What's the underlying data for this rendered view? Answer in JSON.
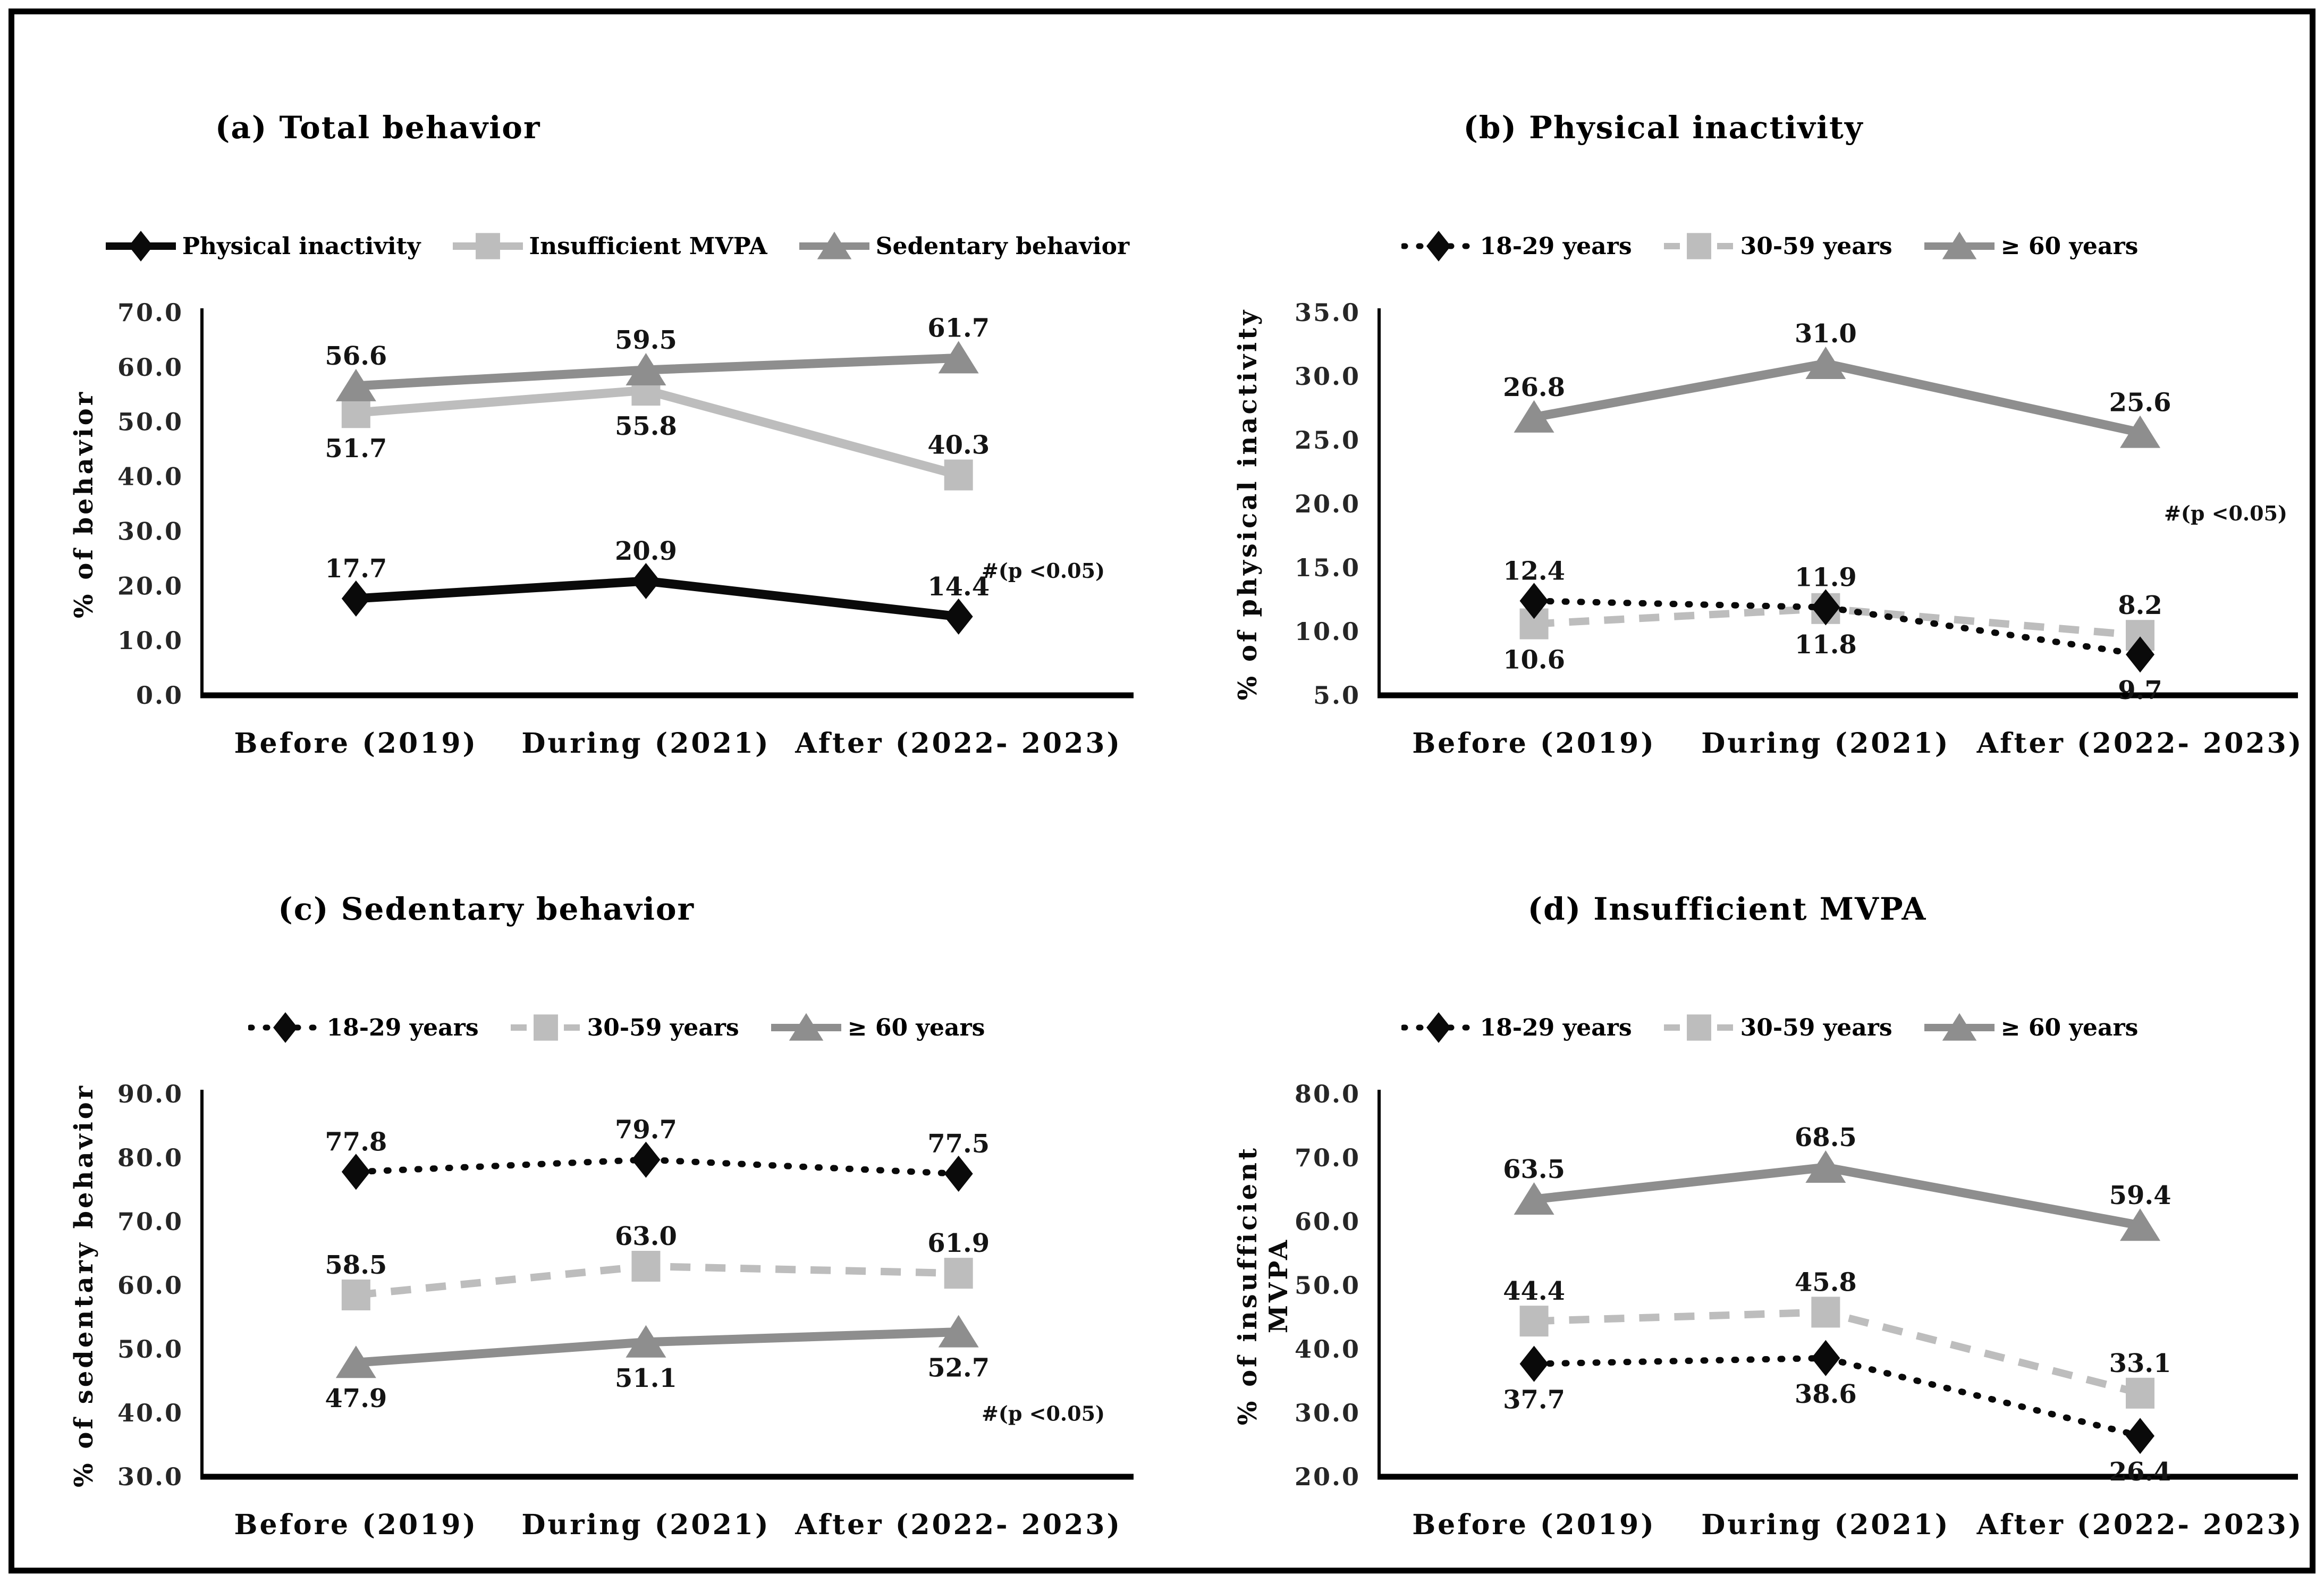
{
  "figure": {
    "background": "#ffffff",
    "border_color": "#000000",
    "text_color": "#000000",
    "colors": {
      "black_series": "#0a0a0a",
      "light_gray_series": "#bdbdbd",
      "mid_gray_series": "#8e8e8e"
    }
  },
  "categories": [
    "Before (2019)",
    "During (2021)",
    "After (2022- 2023)"
  ],
  "chart_data": [
    {
      "panel": "a",
      "type": "line",
      "title": "(a) Total behavior",
      "y_axis_label_lines": [
        "% of behavior"
      ],
      "ylim": [
        0,
        70
      ],
      "ystep": 10,
      "grid": false,
      "legend_position": "top",
      "annotation": {
        "text": "#(p <0.05)",
        "y": 21.5
      },
      "draw_order": [
        1,
        2,
        0
      ],
      "series": [
        {
          "name": "Physical inactivity",
          "marker": "diamond",
          "line_style": "solid",
          "color": "#0a0a0a",
          "values": [
            17.7,
            20.9,
            14.4
          ],
          "label_pos": [
            "above",
            "above",
            "above"
          ]
        },
        {
          "name": "Insufficient MVPA",
          "marker": "square",
          "line_style": "solid",
          "color": "#bdbdbd",
          "values": [
            51.7,
            55.8,
            40.3
          ],
          "label_pos": [
            "below",
            "below",
            "above"
          ]
        },
        {
          "name": "Sedentary behavior",
          "marker": "triangle",
          "line_style": "solid",
          "color": "#8e8e8e",
          "values": [
            56.6,
            59.5,
            61.7
          ],
          "label_pos": [
            "above",
            "above",
            "above"
          ]
        }
      ]
    },
    {
      "panel": "b",
      "type": "line",
      "title": "(b) Physical inactivity",
      "y_axis_label_lines": [
        "% of physical inactivity"
      ],
      "ylim": [
        5,
        35
      ],
      "ystep": 5,
      "grid": false,
      "legend_position": "top",
      "annotation": {
        "text": "#(p <0.05)",
        "y": 18.7
      },
      "draw_order": [
        1,
        0,
        2
      ],
      "series": [
        {
          "name": "18-29 years",
          "marker": "diamond",
          "line_style": "dotted",
          "color": "#0a0a0a",
          "values": [
            12.4,
            11.9,
            8.2
          ],
          "label_pos": [
            "above",
            "above",
            "above"
          ],
          "label_anchor_values": [
            null,
            null,
            9.7
          ]
        },
        {
          "name": "30-59 years",
          "marker": "square",
          "line_style": "dashed",
          "color": "#bdbdbd",
          "values": [
            10.6,
            11.8,
            9.7
          ],
          "label_pos": [
            "below",
            "below",
            "below"
          ],
          "label_anchor_values": [
            null,
            null,
            8.2
          ]
        },
        {
          "name": "≥ 60 years",
          "marker": "triangle",
          "line_style": "solid",
          "color": "#8e8e8e",
          "values": [
            26.8,
            31.0,
            25.6
          ],
          "label_pos": [
            "above",
            "above",
            "above"
          ]
        }
      ]
    },
    {
      "panel": "c",
      "type": "line",
      "title": "(c) Sedentary behavior",
      "y_axis_label_lines": [
        "% of sedentary behavior"
      ],
      "ylim": [
        30,
        90
      ],
      "ystep": 10,
      "grid": false,
      "legend_position": "top",
      "annotation": {
        "text": "#(p <0.05)",
        "y": 38.8
      },
      "draw_order": [
        1,
        0,
        2
      ],
      "series": [
        {
          "name": "18-29 years",
          "marker": "diamond",
          "line_style": "dotted",
          "color": "#0a0a0a",
          "values": [
            77.8,
            79.7,
            77.5
          ],
          "label_pos": [
            "above",
            "above",
            "above"
          ]
        },
        {
          "name": "30-59 years",
          "marker": "square",
          "line_style": "dashed",
          "color": "#bdbdbd",
          "values": [
            58.5,
            63.0,
            61.9
          ],
          "label_pos": [
            "above",
            "above",
            "above"
          ]
        },
        {
          "name": "≥ 60 years",
          "marker": "triangle",
          "line_style": "solid",
          "color": "#8e8e8e",
          "values": [
            47.9,
            51.1,
            52.7
          ],
          "label_pos": [
            "below",
            "below",
            "below"
          ]
        }
      ]
    },
    {
      "panel": "d",
      "type": "line",
      "title": "(d) Insufficient MVPA",
      "y_axis_label_lines": [
        "% of insufficient",
        "MVPA"
      ],
      "ylim": [
        20,
        80
      ],
      "ystep": 10,
      "grid": false,
      "legend_position": "top",
      "annotation": null,
      "draw_order": [
        1,
        0,
        2
      ],
      "series": [
        {
          "name": "18-29 years",
          "marker": "diamond",
          "line_style": "dotted",
          "color": "#0a0a0a",
          "values": [
            37.7,
            38.6,
            26.4
          ],
          "label_pos": [
            "below",
            "below",
            "below"
          ]
        },
        {
          "name": "30-59 years",
          "marker": "square",
          "line_style": "dashed",
          "color": "#bdbdbd",
          "values": [
            44.4,
            45.8,
            33.1
          ],
          "label_pos": [
            "above",
            "above",
            "above"
          ]
        },
        {
          "name": "≥ 60 years",
          "marker": "triangle",
          "line_style": "solid",
          "color": "#8e8e8e",
          "values": [
            63.5,
            68.5,
            59.4
          ],
          "label_pos": [
            "above",
            "above",
            "above"
          ]
        }
      ]
    }
  ]
}
